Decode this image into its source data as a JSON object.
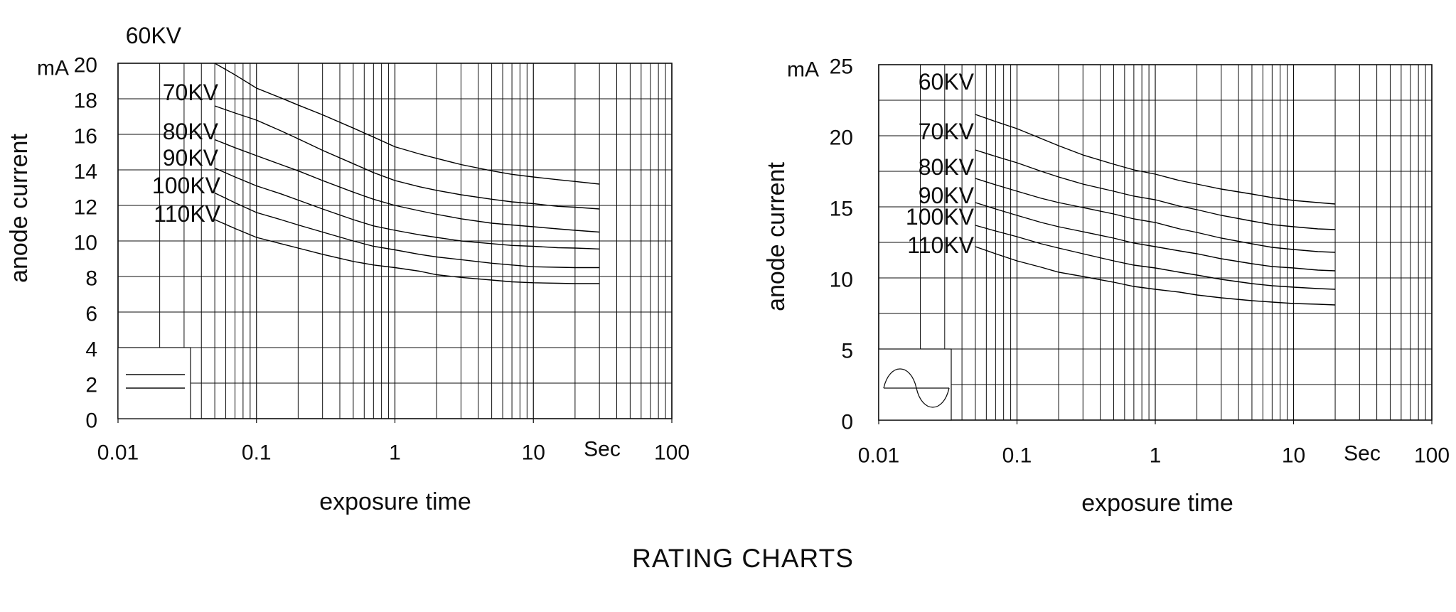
{
  "page": {
    "title": "RATING CHARTS",
    "background": "#ffffff",
    "ink": "#0d0d0d"
  },
  "chart_data": [
    {
      "id": "left-rating-chart",
      "type": "line",
      "x_axis": {
        "scale": "log",
        "min": 0.01,
        "max": 100,
        "tick_labels": [
          "0.01",
          "0.1",
          "1",
          "10",
          "100"
        ],
        "unit": "Sec",
        "label": "exposure time",
        "grid": "on"
      },
      "y_axis": {
        "min": 0,
        "max": 20,
        "grid_step": 2,
        "label_step": 2,
        "unit": "mA",
        "label": "anode current",
        "tick_labels": [
          "20",
          "18",
          "16",
          "14",
          "12",
          "10",
          "8",
          "6",
          "4",
          "2",
          "0"
        ]
      },
      "waveform_symbol": "constant-potential-dc",
      "legend_position": "bottom-left",
      "series": [
        {
          "name": "60KV",
          "points": [
            [
              0.05,
              20.0
            ],
            [
              0.07,
              19.35
            ],
            [
              0.1,
              18.6
            ],
            [
              0.15,
              18.05
            ],
            [
              0.2,
              17.65
            ],
            [
              0.3,
              17.1
            ],
            [
              0.5,
              16.35
            ],
            [
              0.7,
              15.85
            ],
            [
              1,
              15.3
            ],
            [
              1.5,
              14.9
            ],
            [
              2,
              14.65
            ],
            [
              3,
              14.3
            ],
            [
              5,
              13.95
            ],
            [
              7,
              13.75
            ],
            [
              10,
              13.6
            ],
            [
              15,
              13.45
            ],
            [
              20,
              13.35
            ],
            [
              30,
              13.2
            ]
          ]
        },
        {
          "name": "70KV",
          "points": [
            [
              0.05,
              17.6
            ],
            [
              0.07,
              17.2
            ],
            [
              0.1,
              16.8
            ],
            [
              0.15,
              16.2
            ],
            [
              0.2,
              15.75
            ],
            [
              0.3,
              15.1
            ],
            [
              0.5,
              14.35
            ],
            [
              0.7,
              13.85
            ],
            [
              1,
              13.4
            ],
            [
              1.5,
              13.05
            ],
            [
              2,
              12.85
            ],
            [
              3,
              12.6
            ],
            [
              5,
              12.35
            ],
            [
              7,
              12.2
            ],
            [
              10,
              12.1
            ],
            [
              15,
              11.95
            ],
            [
              20,
              11.9
            ],
            [
              30,
              11.8
            ]
          ]
        },
        {
          "name": "80KV",
          "points": [
            [
              0.05,
              15.7
            ],
            [
              0.07,
              15.25
            ],
            [
              0.1,
              14.8
            ],
            [
              0.15,
              14.3
            ],
            [
              0.2,
              13.95
            ],
            [
              0.3,
              13.4
            ],
            [
              0.5,
              12.75
            ],
            [
              0.7,
              12.35
            ],
            [
              1,
              12.0
            ],
            [
              1.5,
              11.7
            ],
            [
              2,
              11.5
            ],
            [
              3,
              11.25
            ],
            [
              5,
              11.0
            ],
            [
              7,
              10.9
            ],
            [
              10,
              10.8
            ],
            [
              15,
              10.68
            ],
            [
              20,
              10.6
            ],
            [
              30,
              10.5
            ]
          ]
        },
        {
          "name": "90KV",
          "points": [
            [
              0.05,
              14.1
            ],
            [
              0.07,
              13.6
            ],
            [
              0.1,
              13.1
            ],
            [
              0.15,
              12.65
            ],
            [
              0.2,
              12.3
            ],
            [
              0.3,
              11.8
            ],
            [
              0.5,
              11.2
            ],
            [
              0.7,
              10.85
            ],
            [
              1,
              10.6
            ],
            [
              1.5,
              10.35
            ],
            [
              2,
              10.2
            ],
            [
              3,
              10.0
            ],
            [
              5,
              9.85
            ],
            [
              7,
              9.75
            ],
            [
              10,
              9.7
            ],
            [
              15,
              9.62
            ],
            [
              20,
              9.6
            ],
            [
              30,
              9.55
            ]
          ]
        },
        {
          "name": "100KV",
          "points": [
            [
              0.05,
              12.7
            ],
            [
              0.07,
              12.15
            ],
            [
              0.1,
              11.6
            ],
            [
              0.15,
              11.2
            ],
            [
              0.2,
              10.9
            ],
            [
              0.3,
              10.5
            ],
            [
              0.5,
              10.0
            ],
            [
              0.7,
              9.7
            ],
            [
              1,
              9.5
            ],
            [
              1.5,
              9.25
            ],
            [
              2,
              9.1
            ],
            [
              3,
              8.95
            ],
            [
              5,
              8.75
            ],
            [
              7,
              8.65
            ],
            [
              10,
              8.55
            ],
            [
              15,
              8.52
            ],
            [
              20,
              8.5
            ],
            [
              30,
              8.5
            ]
          ]
        },
        {
          "name": "110KV",
          "points": [
            [
              0.05,
              11.2
            ],
            [
              0.07,
              10.7
            ],
            [
              0.1,
              10.2
            ],
            [
              0.15,
              9.85
            ],
            [
              0.2,
              9.6
            ],
            [
              0.3,
              9.25
            ],
            [
              0.5,
              8.85
            ],
            [
              0.7,
              8.65
            ],
            [
              1,
              8.5
            ],
            [
              1.5,
              8.3
            ],
            [
              2,
              8.1
            ],
            [
              3,
              7.95
            ],
            [
              5,
              7.8
            ],
            [
              7,
              7.7
            ],
            [
              10,
              7.65
            ],
            [
              15,
              7.62
            ],
            [
              20,
              7.6
            ],
            [
              30,
              7.6
            ]
          ]
        }
      ]
    },
    {
      "id": "right-rating-chart",
      "type": "line",
      "x_axis": {
        "scale": "log",
        "min": 0.01,
        "max": 100,
        "tick_labels": [
          "0.01",
          "0.1",
          "1",
          "10",
          "100"
        ],
        "unit": "Sec",
        "label": "exposure time",
        "grid": "on"
      },
      "y_axis": {
        "min": 0,
        "max": 25,
        "grid_step": 2.5,
        "label_step": 5,
        "unit": "mA",
        "label": "anode current",
        "tick_labels": [
          "25",
          "20",
          "15",
          "10",
          "5",
          "0"
        ]
      },
      "waveform_symbol": "single-phase-sine",
      "legend_position": "bottom-left",
      "series": [
        {
          "name": "60KV",
          "points": [
            [
              0.05,
              21.5
            ],
            [
              0.07,
              21.0
            ],
            [
              0.1,
              20.5
            ],
            [
              0.15,
              19.8
            ],
            [
              0.2,
              19.3
            ],
            [
              0.3,
              18.65
            ],
            [
              0.5,
              18.0
            ],
            [
              0.7,
              17.6
            ],
            [
              1,
              17.3
            ],
            [
              1.5,
              16.85
            ],
            [
              2,
              16.6
            ],
            [
              3,
              16.25
            ],
            [
              5,
              15.9
            ],
            [
              7,
              15.65
            ],
            [
              10,
              15.45
            ],
            [
              15,
              15.3
            ],
            [
              20,
              15.2
            ]
          ]
        },
        {
          "name": "70KV",
          "points": [
            [
              0.05,
              19.0
            ],
            [
              0.07,
              18.55
            ],
            [
              0.1,
              18.1
            ],
            [
              0.15,
              17.5
            ],
            [
              0.2,
              17.1
            ],
            [
              0.3,
              16.6
            ],
            [
              0.5,
              16.1
            ],
            [
              0.7,
              15.75
            ],
            [
              1,
              15.5
            ],
            [
              1.5,
              15.05
            ],
            [
              2,
              14.8
            ],
            [
              3,
              14.4
            ],
            [
              5,
              14.0
            ],
            [
              7,
              13.75
            ],
            [
              10,
              13.6
            ],
            [
              15,
              13.45
            ],
            [
              20,
              13.4
            ]
          ]
        },
        {
          "name": "80KV",
          "points": [
            [
              0.05,
              17.0
            ],
            [
              0.07,
              16.55
            ],
            [
              0.1,
              16.1
            ],
            [
              0.15,
              15.6
            ],
            [
              0.2,
              15.3
            ],
            [
              0.3,
              14.95
            ],
            [
              0.5,
              14.5
            ],
            [
              0.7,
              14.15
            ],
            [
              1,
              13.9
            ],
            [
              1.5,
              13.45
            ],
            [
              2,
              13.2
            ],
            [
              3,
              12.8
            ],
            [
              5,
              12.4
            ],
            [
              7,
              12.15
            ],
            [
              10,
              12.0
            ],
            [
              15,
              11.85
            ],
            [
              20,
              11.8
            ]
          ]
        },
        {
          "name": "90KV",
          "points": [
            [
              0.05,
              15.3
            ],
            [
              0.07,
              14.85
            ],
            [
              0.1,
              14.4
            ],
            [
              0.15,
              13.9
            ],
            [
              0.2,
              13.6
            ],
            [
              0.3,
              13.25
            ],
            [
              0.5,
              12.8
            ],
            [
              0.7,
              12.45
            ],
            [
              1,
              12.2
            ],
            [
              1.5,
              11.9
            ],
            [
              2,
              11.7
            ],
            [
              3,
              11.35
            ],
            [
              5,
              11.0
            ],
            [
              7,
              10.8
            ],
            [
              10,
              10.7
            ],
            [
              15,
              10.55
            ],
            [
              20,
              10.5
            ]
          ]
        },
        {
          "name": "100KV",
          "points": [
            [
              0.05,
              13.7
            ],
            [
              0.07,
              13.3
            ],
            [
              0.1,
              12.9
            ],
            [
              0.15,
              12.4
            ],
            [
              0.2,
              12.1
            ],
            [
              0.3,
              11.7
            ],
            [
              0.5,
              11.2
            ],
            [
              0.7,
              10.9
            ],
            [
              1,
              10.7
            ],
            [
              1.5,
              10.4
            ],
            [
              2,
              10.2
            ],
            [
              3,
              9.9
            ],
            [
              5,
              9.6
            ],
            [
              7,
              9.45
            ],
            [
              10,
              9.35
            ],
            [
              15,
              9.25
            ],
            [
              20,
              9.2
            ]
          ]
        },
        {
          "name": "110KV",
          "points": [
            [
              0.05,
              12.2
            ],
            [
              0.07,
              11.7
            ],
            [
              0.1,
              11.2
            ],
            [
              0.15,
              10.75
            ],
            [
              0.2,
              10.4
            ],
            [
              0.3,
              10.1
            ],
            [
              0.5,
              9.7
            ],
            [
              0.7,
              9.4
            ],
            [
              1,
              9.2
            ],
            [
              1.5,
              9.0
            ],
            [
              2,
              8.8
            ],
            [
              3,
              8.6
            ],
            [
              5,
              8.4
            ],
            [
              7,
              8.3
            ],
            [
              10,
              8.2
            ],
            [
              15,
              8.15
            ],
            [
              20,
              8.1
            ]
          ]
        }
      ]
    }
  ]
}
